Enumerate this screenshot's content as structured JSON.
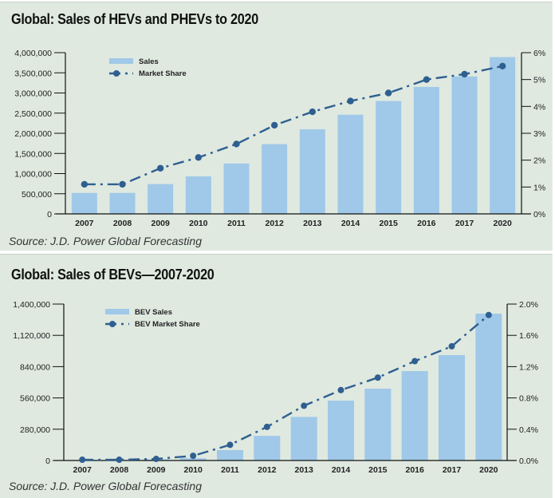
{
  "colors": {
    "background": "#dfe9e0",
    "bar": "#a0c8e8",
    "line": "#2f5f90",
    "axis": "#111111"
  },
  "chart_data": [
    {
      "type": "bar",
      "title": "Global: Sales of HEVs and PHEVs to 2020",
      "source": "Source: J.D. Power Global Forecasting",
      "categories": [
        "2007",
        "2008",
        "2009",
        "2010",
        "2011",
        "2012",
        "2013",
        "2014",
        "2015",
        "2016",
        "2017",
        "2020"
      ],
      "series": [
        {
          "name": "Sales",
          "type": "bar",
          "axis": "left",
          "values": [
            520000,
            520000,
            740000,
            930000,
            1250000,
            1730000,
            2100000,
            2460000,
            2800000,
            3150000,
            3410000,
            3890000
          ]
        },
        {
          "name": "Market Share",
          "type": "line",
          "axis": "right",
          "unit": "%",
          "values": [
            1.1,
            1.1,
            1.7,
            2.1,
            2.6,
            3.3,
            3.8,
            4.2,
            4.5,
            5.0,
            5.2,
            5.5
          ]
        }
      ],
      "left_axis": {
        "ylim": [
          0,
          4000000
        ],
        "ticks": [
          0,
          500000,
          1000000,
          1500000,
          2000000,
          2500000,
          3000000,
          3500000,
          4000000
        ],
        "tick_labels": [
          "0",
          "500,000",
          "1,000,000",
          "1,500,000",
          "2,000,000",
          "2,500,000",
          "3,000,000",
          "3,500,000",
          "4,000,000"
        ]
      },
      "right_axis": {
        "ylim": [
          0,
          6
        ],
        "ticks": [
          0,
          1,
          2,
          3,
          4,
          5,
          6
        ],
        "tick_labels": [
          "0%",
          "1%",
          "2%",
          "3%",
          "4%",
          "5%",
          "6%"
        ]
      },
      "xlabel": "",
      "ylabel": "",
      "legend": {
        "placement": "top-left",
        "entries": [
          "Sales",
          "Market Share"
        ]
      },
      "grid": false
    },
    {
      "type": "bar",
      "title": "Global: Sales of BEVs—2007-2020",
      "source": "Source: J.D. Power Global Forecasting",
      "categories": [
        "2007",
        "2008",
        "2009",
        "2010",
        "2011",
        "2012",
        "2013",
        "2014",
        "2015",
        "2016",
        "2017",
        "2020"
      ],
      "series": [
        {
          "name": "BEV Sales",
          "type": "bar",
          "axis": "left",
          "values": [
            5000,
            5000,
            10000,
            20000,
            93000,
            220000,
            390000,
            536000,
            643000,
            800000,
            943000,
            1314000
          ]
        },
        {
          "name": "BEV Market Share",
          "type": "line",
          "axis": "right",
          "unit": "%",
          "values": [
            0.01,
            0.01,
            0.02,
            0.06,
            0.2,
            0.43,
            0.7,
            0.9,
            1.06,
            1.27,
            1.46,
            1.86
          ]
        }
      ],
      "left_axis": {
        "ylim": [
          0,
          1400000
        ],
        "ticks": [
          0,
          280000,
          560000,
          840000,
          1120000,
          1400000
        ],
        "tick_labels": [
          "0",
          "280,000",
          "560,000",
          "840,000",
          "1,120,000",
          "1,400,000"
        ]
      },
      "right_axis": {
        "ylim": [
          0,
          2
        ],
        "ticks": [
          0,
          0.4,
          0.8,
          1.2,
          1.6,
          2.0
        ],
        "tick_labels": [
          "0.0%",
          "0.4%",
          "0.8%",
          "1.2%",
          "1.6%",
          "2.0%"
        ]
      },
      "xlabel": "",
      "ylabel": "",
      "legend": {
        "placement": "top-left",
        "entries": [
          "BEV Sales",
          "BEV Market Share"
        ]
      },
      "grid": false
    }
  ]
}
